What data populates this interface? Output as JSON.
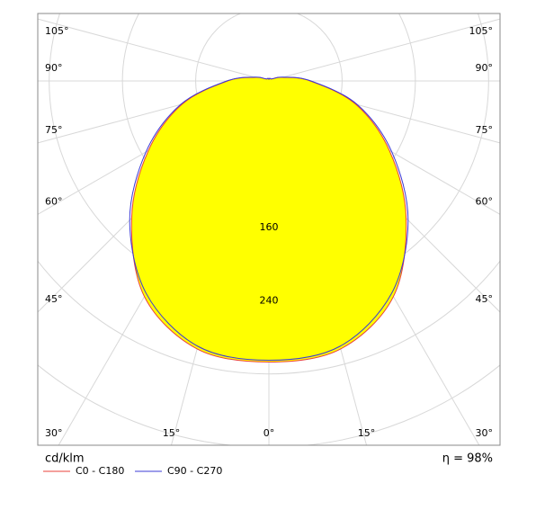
{
  "chart_data": {
    "type": "polar",
    "unit_label": "cd/klm",
    "efficiency_label": "η = 98%",
    "x": [
      -180,
      -165,
      -150,
      -135,
      -120,
      -105,
      -90,
      -75,
      -60,
      -45,
      -30,
      -15,
      0,
      15,
      30,
      45,
      60,
      75,
      90,
      105,
      120,
      135,
      150,
      165,
      180
    ],
    "series": [
      {
        "name": "C0 - C180",
        "color": "#e8403a",
        "fill": "#ffff00",
        "values": [
          2,
          3,
          3,
          3,
          5,
          15,
          45,
          98,
          152,
          212,
          272,
          303,
          307,
          303,
          272,
          212,
          152,
          98,
          45,
          15,
          5,
          3,
          3,
          3,
          2
        ]
      },
      {
        "name": "C90 - C270",
        "color": "#3b3bd6",
        "values": [
          2,
          3,
          3,
          3,
          5,
          16,
          46,
          100,
          155,
          215,
          268,
          300,
          305,
          300,
          268,
          215,
          155,
          100,
          46,
          16,
          5,
          3,
          3,
          3,
          2
        ]
      }
    ],
    "rgrid": [
      80,
      160,
      240,
      320,
      400
    ],
    "rticks": [
      160,
      240
    ],
    "angle_ticks": [
      {
        "value": 0,
        "label": "0°"
      },
      {
        "value": 15,
        "label": "15°"
      },
      {
        "value": 30,
        "label": "30°"
      },
      {
        "value": 45,
        "label": "45°"
      },
      {
        "value": 60,
        "label": "60°"
      },
      {
        "value": 75,
        "label": "75°"
      },
      {
        "value": 90,
        "label": "90°"
      },
      {
        "value": 105,
        "label": "105°"
      }
    ]
  }
}
